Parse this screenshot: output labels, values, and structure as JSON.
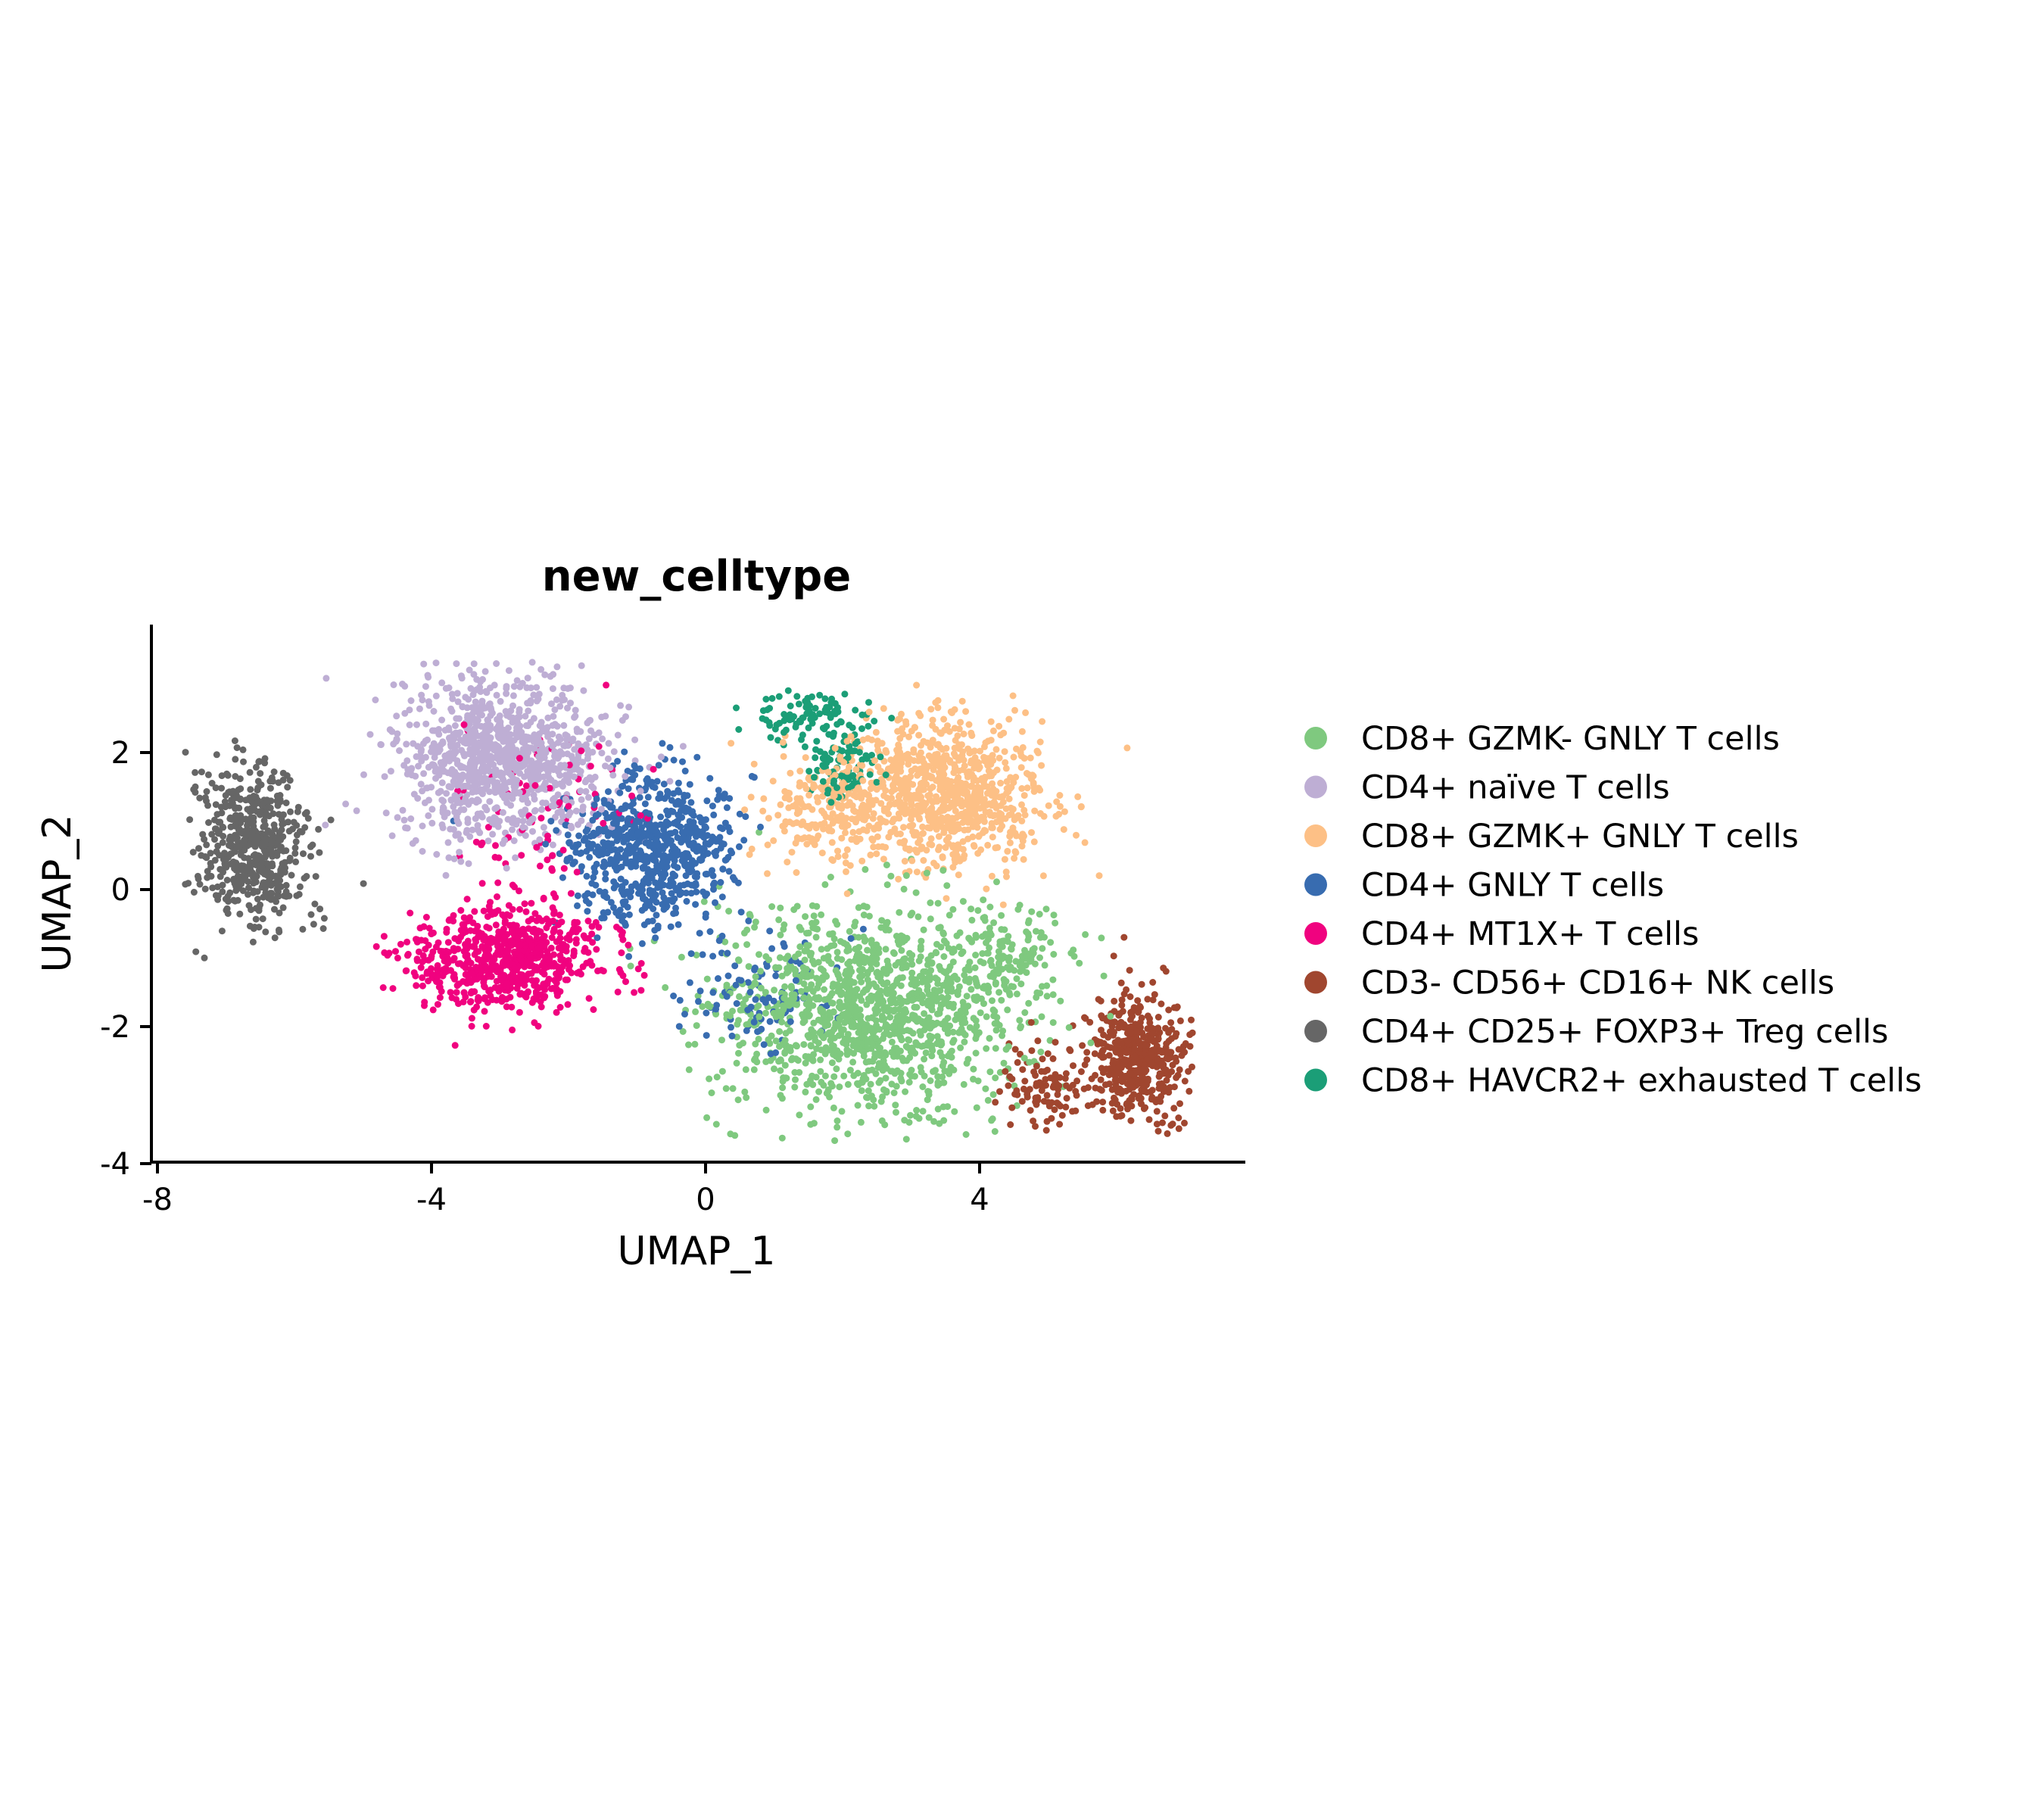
{
  "chart_data": {
    "type": "scatter",
    "title": "new_celltype",
    "xlabel": "UMAP_1",
    "ylabel": "UMAP_2",
    "xlim": [
      -8,
      8
    ],
    "ylim": [
      -4,
      3.8
    ],
    "xticks": [
      -8,
      -4,
      0,
      4
    ],
    "xtick_labels": [
      "-8",
      "-4",
      "0",
      "4"
    ],
    "yticks": [
      2,
      0,
      -2,
      -4
    ],
    "ytick_labels": [
      "2",
      "0",
      "-2",
      "-4"
    ],
    "grid": false,
    "legend_position": "right",
    "series": [
      {
        "name": "CD8+ GZMK- GNLY T cells",
        "color": "#7fc97f",
        "clusters": [
          {
            "cx": 2.4,
            "cy": -1.8,
            "sx": 1.4,
            "sy": 1.0,
            "n": 1300
          },
          {
            "cx": 4.4,
            "cy": -1.0,
            "sx": 0.5,
            "sy": 0.5,
            "n": 120
          }
        ]
      },
      {
        "name": "CD4+ naïve T cells",
        "color": "#beaed4",
        "clusters": [
          {
            "cx": -3.0,
            "cy": 1.9,
            "sx": 1.0,
            "sy": 0.75,
            "n": 1000
          }
        ]
      },
      {
        "name": "CD8+ GZMK+ GNLY T cells",
        "color": "#fdc086",
        "clusters": [
          {
            "cx": 3.6,
            "cy": 1.4,
            "sx": 0.9,
            "sy": 0.7,
            "n": 800
          },
          {
            "cx": 1.8,
            "cy": 1.2,
            "sx": 0.7,
            "sy": 0.5,
            "n": 250
          }
        ]
      },
      {
        "name": "CD4+ GNLY T cells",
        "color": "#386cb0",
        "clusters": [
          {
            "cx": -0.8,
            "cy": 0.6,
            "sx": 0.8,
            "sy": 0.7,
            "n": 700
          },
          {
            "cx": 0.8,
            "cy": -1.5,
            "sx": 0.8,
            "sy": 0.6,
            "n": 100
          }
        ]
      },
      {
        "name": "CD4+ MT1X+ T cells",
        "color": "#f0027f",
        "clusters": [
          {
            "cx": -2.9,
            "cy": -1.0,
            "sx": 0.9,
            "sy": 0.5,
            "n": 700
          },
          {
            "cx": -2.5,
            "cy": 1.0,
            "sx": 1.0,
            "sy": 0.8,
            "n": 80
          }
        ]
      },
      {
        "name": "CD3- CD56+ CD16+ NK cells",
        "color": "#a0462f",
        "clusters": [
          {
            "cx": 6.3,
            "cy": -2.4,
            "sx": 0.45,
            "sy": 0.6,
            "n": 450
          },
          {
            "cx": 5.0,
            "cy": -2.8,
            "sx": 0.45,
            "sy": 0.4,
            "n": 100
          }
        ]
      },
      {
        "name": "CD4+ CD25+ FOXP3+ Treg cells",
        "color": "#666666",
        "clusters": [
          {
            "cx": -6.6,
            "cy": 0.6,
            "sx": 0.5,
            "sy": 0.75,
            "n": 550
          }
        ]
      },
      {
        "name": "CD8+ HAVCR2+ exhausted T cells",
        "color": "#1b9e77",
        "clusters": [
          {
            "cx": 1.6,
            "cy": 2.5,
            "sx": 0.6,
            "sy": 0.25,
            "n": 100
          },
          {
            "cx": 2.0,
            "cy": 1.8,
            "sx": 0.3,
            "sy": 0.3,
            "n": 80
          }
        ]
      }
    ]
  }
}
